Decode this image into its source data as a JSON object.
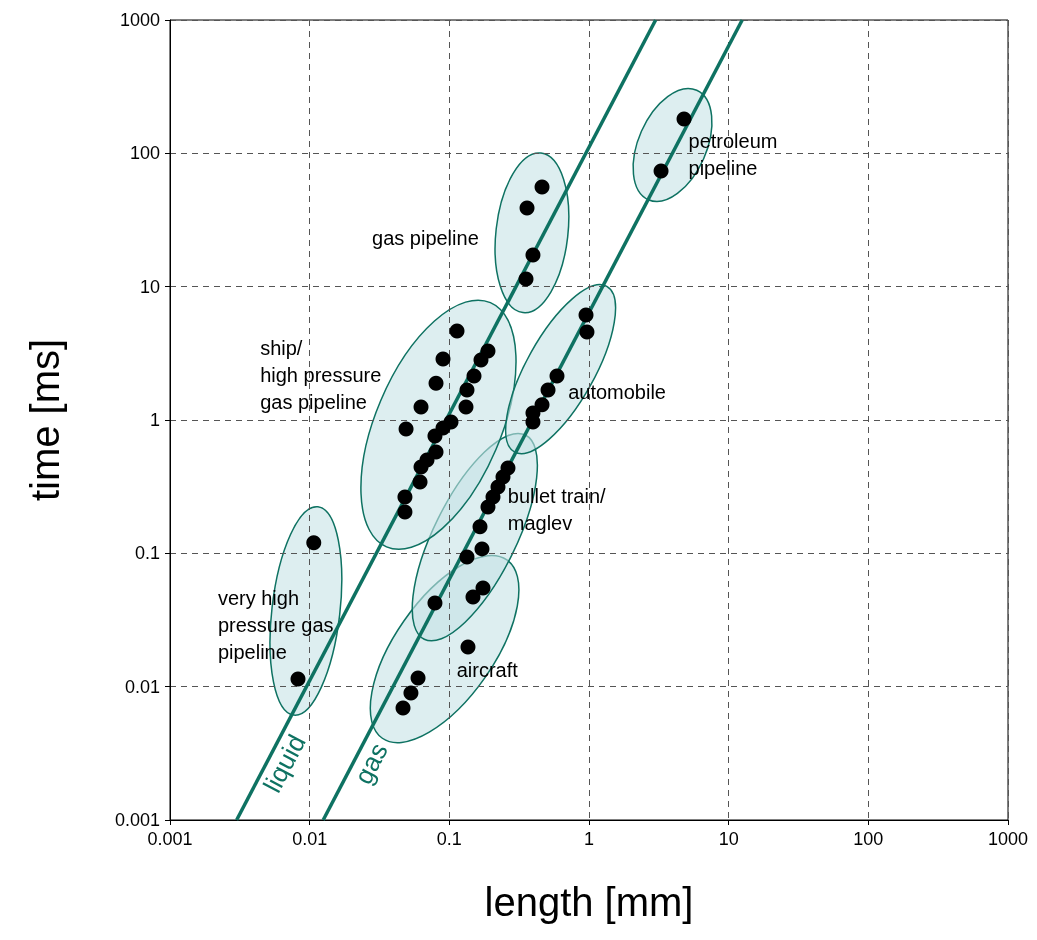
{
  "chart_data": {
    "type": "scatter",
    "xlabel": "length [mm]",
    "ylabel": "time [ms]",
    "log": "xy",
    "grid": true,
    "legend": false,
    "marker": "circle",
    "xlim": [
      0.001,
      1000
    ],
    "xticks": [
      0.001,
      0.01,
      0.1,
      1,
      10,
      100,
      1000
    ],
    "ylim": [
      0.001,
      1000
    ],
    "yticks": [
      0.001,
      0.01,
      0.1,
      1,
      10,
      100,
      1000
    ],
    "series": [
      {
        "name": "very high\npressure gas\npipeline",
        "color": "#000000",
        "x": [
          0.0107,
          0.00825
        ],
        "values": [
          0.12,
          0.0114
        ]
      },
      {
        "name": "aircraft",
        "color": "#000000",
        "x": [
          0.1742,
          0.1477,
          0.136,
          0.0597,
          0.0531,
          0.0466
        ],
        "values": [
          0.055,
          0.047,
          0.0198,
          0.0116,
          0.00897,
          0.00692
        ]
      },
      {
        "name": "bullet train/\nmaglev",
        "color": "#000000",
        "x": [
          0.263,
          0.2422,
          0.223,
          0.2054,
          0.1891,
          0.1658,
          0.1713,
          0.1338,
          0.0789
        ],
        "values": [
          0.437,
          0.374,
          0.314,
          0.265,
          0.223,
          0.158,
          0.108,
          0.0939,
          0.0424
        ]
      },
      {
        "name": "ship/\nhigh pressure\ngas pipeline",
        "color": "#000000",
        "x": [
          0.1135,
          0.0901,
          0.0803,
          0.0627,
          0.049,
          0.1891,
          0.1685,
          0.1502,
          0.1338,
          0.1316,
          0.1028,
          0.0901,
          0.0789,
          0.0803,
          0.0692,
          0.0627,
          0.0617,
          0.0481,
          0.0481
        ],
        "values": [
          4.65,
          2.87,
          1.89,
          1.25,
          0.856,
          3.29,
          2.82,
          2.14,
          1.68,
          1.25,
          0.966,
          0.871,
          0.759,
          0.575,
          0.501,
          0.444,
          0.343,
          0.265,
          0.204
        ]
      },
      {
        "name": "gas pipeline",
        "color": "#000000",
        "x": [
          0.461,
          0.36,
          0.397,
          0.354
        ],
        "values": [
          55.9,
          38.9,
          17.3,
          11.4
        ]
      },
      {
        "name": "automobile",
        "color": "#000000",
        "x": [
          0.952,
          0.967,
          0.59,
          0.509,
          0.461,
          0.397,
          0.397
        ],
        "values": [
          6.13,
          4.57,
          2.14,
          1.68,
          1.3,
          1.13,
          0.966
        ]
      },
      {
        "name": "petroleum\npipeline",
        "color": "#000000",
        "x": [
          3.28,
          4.79
        ],
        "values": [
          73.7,
          181
        ]
      },
      {
        "type": "line",
        "name": "liquid",
        "marker": "none",
        "color": "#0e7262",
        "x": [
          0.003,
          3
        ],
        "values": [
          0.001,
          1000
        ]
      },
      {
        "type": "line",
        "name": "gas",
        "marker": "none",
        "color": "#0e7262",
        "x": [
          0.0125,
          12.5
        ],
        "values": [
          0.001,
          1000
        ]
      }
    ]
  }
}
